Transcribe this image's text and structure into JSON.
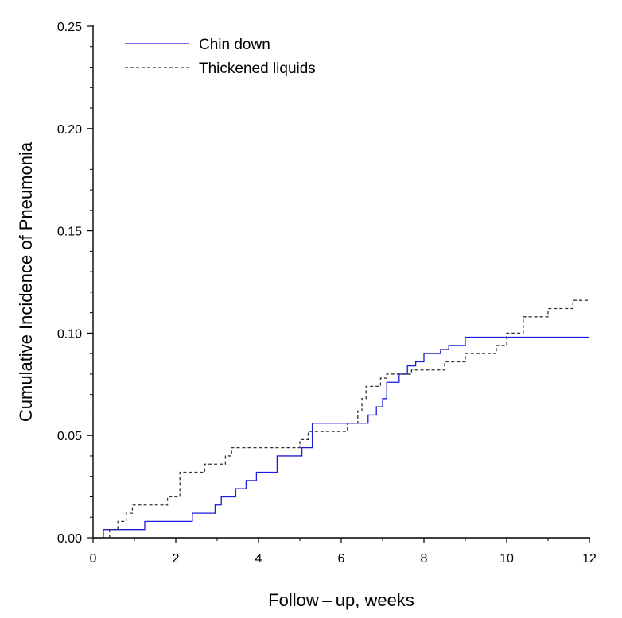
{
  "chart_data": {
    "type": "line",
    "step": true,
    "title": "",
    "xlabel": "Follow – up,  weeks",
    "ylabel": "Cumulative Incidence of Pneumonia",
    "xlim": [
      0,
      12
    ],
    "ylim": [
      0,
      0.25
    ],
    "xticks": [
      0,
      2,
      4,
      6,
      8,
      10,
      12
    ],
    "xtick_labels": [
      "0",
      "2",
      "4",
      "6",
      "8",
      "10",
      "12"
    ],
    "yticks": [
      0,
      0.05,
      0.1,
      0.15,
      0.2,
      0.25
    ],
    "ytick_labels": [
      "0.00",
      "0.05",
      "0.10",
      "0.15",
      "0.20",
      "0.25"
    ],
    "grid": false,
    "legend": {
      "position": "top-left"
    },
    "series": [
      {
        "name": "Chin down",
        "color": "#1a1adb",
        "style": "solid",
        "x": [
          0.25,
          0.4,
          1.25,
          2.4,
          2.95,
          3.1,
          3.45,
          3.7,
          3.95,
          4.45,
          5.05,
          5.3,
          6.05,
          6.65,
          6.85,
          7.0,
          7.1,
          7.4,
          7.6,
          7.8,
          8.0,
          8.4,
          8.6,
          9.0,
          12.0
        ],
        "y": [
          0.004,
          0.004,
          0.008,
          0.012,
          0.016,
          0.02,
          0.024,
          0.028,
          0.032,
          0.04,
          0.044,
          0.056,
          0.056,
          0.06,
          0.064,
          0.068,
          0.076,
          0.08,
          0.084,
          0.086,
          0.09,
          0.092,
          0.094,
          0.098,
          0.098
        ]
      },
      {
        "name": "Thickened liquids",
        "color": "#333333",
        "style": "dashed",
        "x": [
          0.4,
          0.6,
          0.8,
          0.95,
          1.8,
          2.1,
          2.7,
          3.2,
          3.35,
          5.0,
          5.2,
          6.15,
          6.4,
          6.5,
          6.6,
          6.95,
          7.1,
          7.5,
          7.7,
          8.5,
          9.0,
          9.75,
          10.0,
          10.4,
          11.0,
          11.6,
          12.0
        ],
        "y": [
          0.004,
          0.008,
          0.012,
          0.016,
          0.02,
          0.032,
          0.036,
          0.04,
          0.044,
          0.048,
          0.052,
          0.056,
          0.062,
          0.068,
          0.074,
          0.078,
          0.08,
          0.08,
          0.082,
          0.086,
          0.09,
          0.094,
          0.1,
          0.108,
          0.112,
          0.116,
          0.116
        ]
      }
    ]
  }
}
